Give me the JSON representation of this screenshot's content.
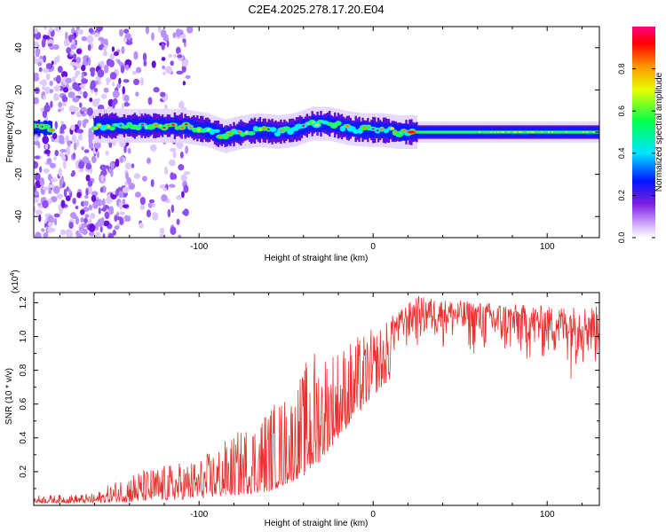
{
  "title": "C2E4.2025.278.17.20.E04",
  "colors": {
    "snr_line": "#e8312f",
    "colormap": [
      "#ffffff",
      "#c9a0ff",
      "#7b1fe0",
      "#0016ff",
      "#00e5ff",
      "#00ff4c",
      "#e6ff00",
      "#ff8c00",
      "#ff0000",
      "#ff007f"
    ]
  },
  "chart_data": [
    {
      "type": "heatmap",
      "name": "spectrogram",
      "xlabel": "Height of straight line (km)",
      "ylabel": "Frequency (Hz)",
      "xlim": [
        -195,
        130
      ],
      "ylim": [
        -50,
        50
      ],
      "xticks": [
        -100,
        0,
        100
      ],
      "xtick_labels": [
        "-100",
        "0",
        "100"
      ],
      "yticks": [
        40,
        20,
        0,
        -20,
        -40
      ],
      "ytick_labels": [
        "40",
        "20",
        "0",
        "-20",
        "-40"
      ],
      "grid": false,
      "band_center_hz": [
        {
          "x": -195,
          "f": 2
        },
        {
          "x": -180,
          "f": 2
        },
        {
          "x": -155,
          "f": 3
        },
        {
          "x": -130,
          "f": 3
        },
        {
          "x": -110,
          "f": 3
        },
        {
          "x": -95,
          "f": 1
        },
        {
          "x": -85,
          "f": -2
        },
        {
          "x": -75,
          "f": 0
        },
        {
          "x": -65,
          "f": 1
        },
        {
          "x": -55,
          "f": 0
        },
        {
          "x": -45,
          "f": 1
        },
        {
          "x": -35,
          "f": 4
        },
        {
          "x": -25,
          "f": 4
        },
        {
          "x": -15,
          "f": 2
        },
        {
          "x": -5,
          "f": 1
        },
        {
          "x": 5,
          "f": 1
        },
        {
          "x": 15,
          "f": 0
        },
        {
          "x": 25,
          "f": 0
        },
        {
          "x": 60,
          "f": 0
        },
        {
          "x": 100,
          "f": 0
        },
        {
          "x": 130,
          "f": 0
        }
      ],
      "noise_region_km": [
        -195,
        -105
      ],
      "colorbar": {
        "label": "Normalized spectral amplitude",
        "range": [
          0,
          1
        ],
        "ticks": [
          0.0,
          0.2,
          0.4,
          0.6,
          0.8
        ],
        "tick_labels": [
          "0.0",
          "0.2",
          "0.4",
          "0.6",
          "0.8"
        ]
      }
    },
    {
      "type": "line",
      "name": "snr",
      "xlabel": "Height of straight line (km)",
      "ylabel": "SNR (10 * v/v)",
      "multiplier_label": "(x10",
      "multiplier_exponent": "4",
      "multiplier_close": ")",
      "xlim": [
        -195,
        130
      ],
      "ylim": [
        0,
        12600
      ],
      "xticks": [
        -100,
        0,
        100
      ],
      "xtick_labels": [
        "-100",
        "0",
        "100"
      ],
      "yticks": [
        2000,
        4000,
        6000,
        8000,
        10000,
        12000
      ],
      "ytick_labels": [
        "0.2",
        "0.4",
        "0.6",
        "0.8",
        "1.0",
        "1.2"
      ],
      "grid": false,
      "envelope": [
        {
          "x": -195,
          "lo": 150,
          "hi": 600
        },
        {
          "x": -160,
          "lo": 150,
          "hi": 700
        },
        {
          "x": -140,
          "lo": 200,
          "hi": 2000
        },
        {
          "x": -120,
          "lo": 300,
          "hi": 2400
        },
        {
          "x": -100,
          "lo": 400,
          "hi": 2800
        },
        {
          "x": -80,
          "lo": 600,
          "hi": 4200
        },
        {
          "x": -60,
          "lo": 800,
          "hi": 6000
        },
        {
          "x": -45,
          "lo": 1500,
          "hi": 7000
        },
        {
          "x": -35,
          "lo": 2000,
          "hi": 9500
        },
        {
          "x": -20,
          "lo": 4000,
          "hi": 9500
        },
        {
          "x": 0,
          "lo": 6500,
          "hi": 10500
        },
        {
          "x": 15,
          "lo": 8000,
          "hi": 11500
        },
        {
          "x": 25,
          "lo": 8500,
          "hi": 12400
        },
        {
          "x": 40,
          "lo": 8800,
          "hi": 12200
        },
        {
          "x": 70,
          "lo": 7500,
          "hi": 12000
        },
        {
          "x": 100,
          "lo": 7500,
          "hi": 11800
        },
        {
          "x": 130,
          "lo": 7000,
          "hi": 11800
        }
      ]
    }
  ]
}
